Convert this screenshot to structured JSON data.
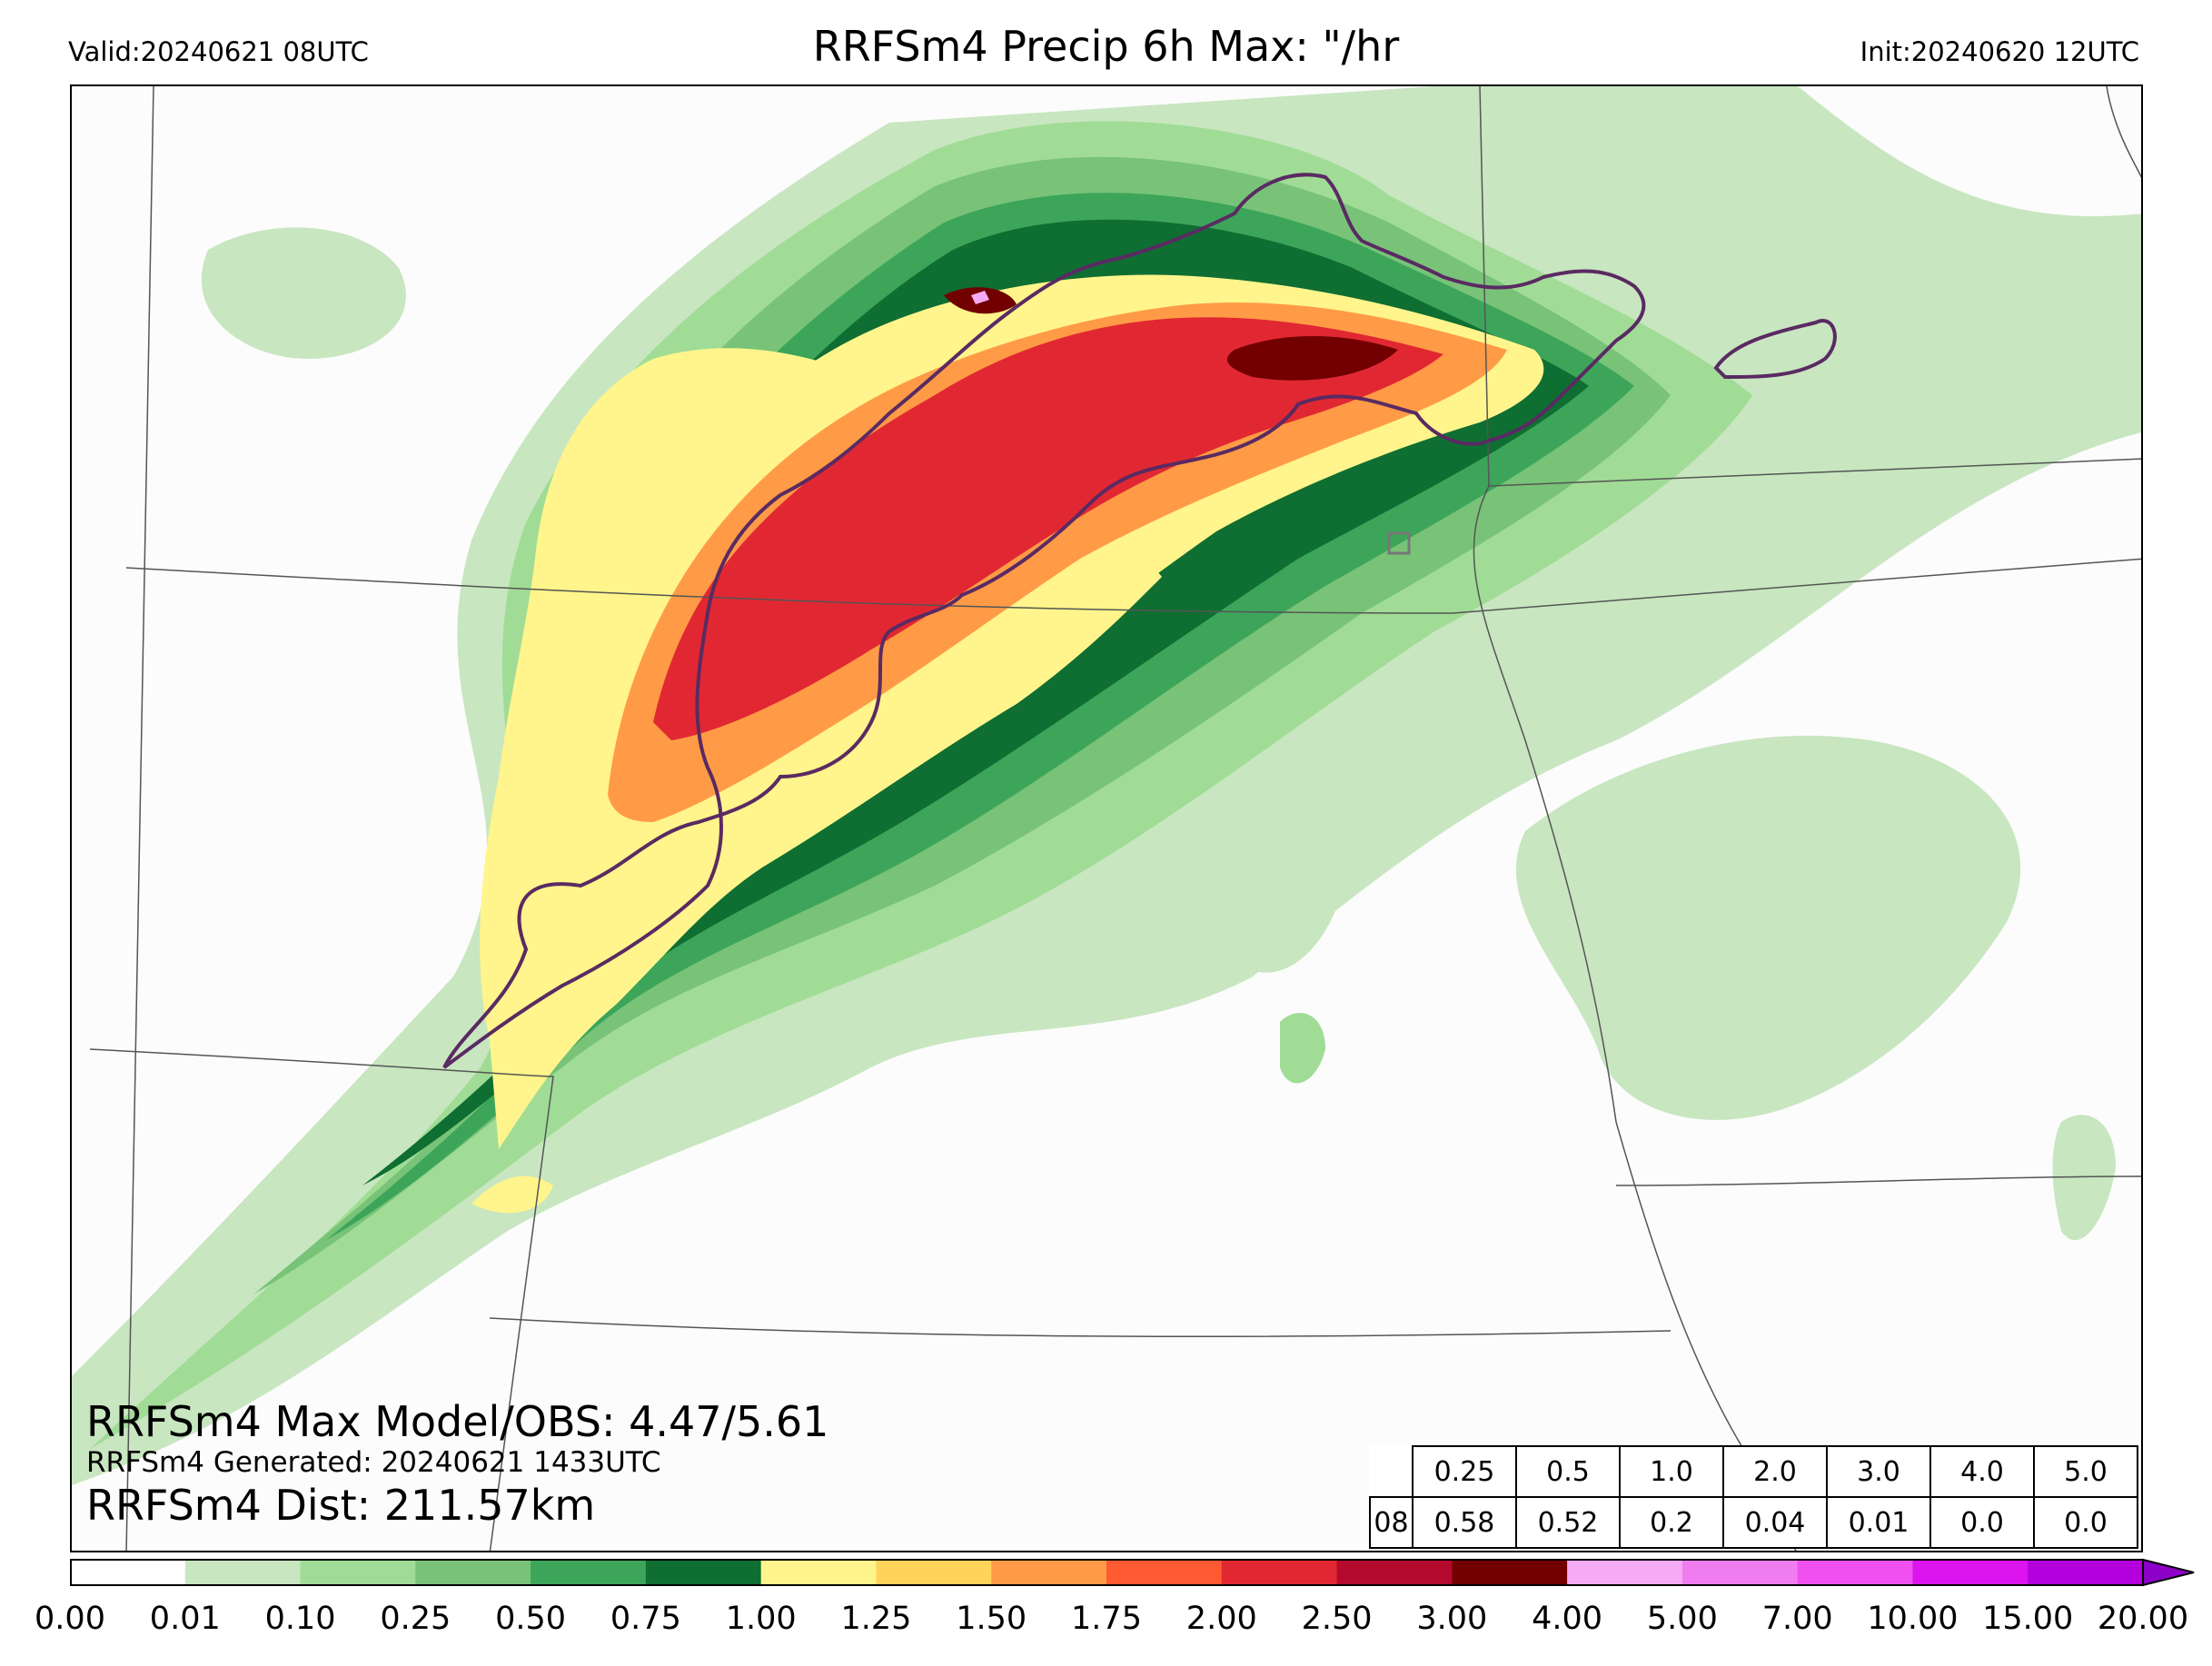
{
  "header": {
    "valid": "Valid:20240621 08UTC",
    "title": "RRFSm4 Precip 6h Max: \"/hr",
    "init": "Init:20240620 12UTC"
  },
  "stats": {
    "max_line": "RRFSm4 Max Model/OBS: 4.47/5.61",
    "generated_line": "RRFSm4 Generated: 20240621 1433UTC",
    "dist_line": "RRFSm4 Dist: 211.57km"
  },
  "threshold_table": {
    "thresholds": [
      "0.25",
      "0.5",
      "1.0",
      "2.0",
      "3.0",
      "4.0",
      "5.0"
    ],
    "row_label": "08",
    "values": [
      "0.58",
      "0.52",
      "0.2",
      "0.04",
      "0.01",
      "0.0",
      "0.0"
    ]
  },
  "colorbar": {
    "tick_labels": [
      "0.00",
      "0.01",
      "0.10",
      "0.25",
      "0.50",
      "0.75",
      "1.00",
      "1.25",
      "1.50",
      "1.75",
      "2.00",
      "2.50",
      "3.00",
      "4.00",
      "5.00",
      "7.00",
      "10.00",
      "15.00",
      "20.00"
    ],
    "colors": [
      "#ffffff",
      "#c8e6c0",
      "#a0dc96",
      "#78c378",
      "#3ca55a",
      "#0f6e32",
      "#fff58c",
      "#ffd25a",
      "#ff9b46",
      "#ff5a32",
      "#e12832",
      "#b40a2d",
      "#730000",
      "#f5aaf5",
      "#f07df0",
      "#f050f0",
      "#dc14f0",
      "#b400dc",
      "#8c00c8"
    ]
  },
  "map_colors": {
    "background": "#fcfcfc",
    "obs_contour": "#5a2a62",
    "boundary": "#555555"
  }
}
